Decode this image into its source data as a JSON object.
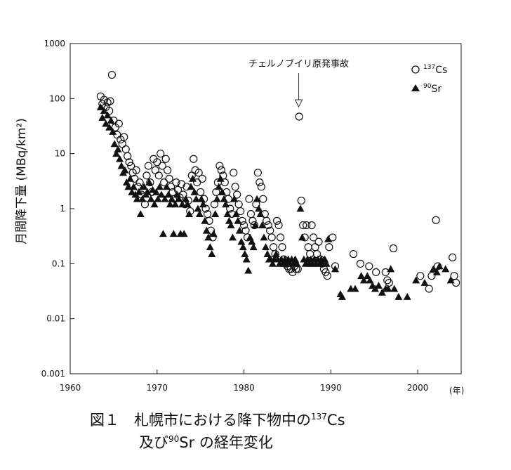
{
  "chart_data": {
    "type": "scatter",
    "ylabel": "月間降下量 (MBq/km²)",
    "xlabel_unit": "(年)",
    "xlim": [
      1960,
      2005
    ],
    "ylim": [
      0.001,
      1000
    ],
    "yscale": "log",
    "x_ticks": [
      "1960",
      "1970",
      "1980",
      "1990",
      "2000"
    ],
    "y_ticks": [
      "1000",
      "100",
      "10",
      "1",
      "0.1",
      "0.01",
      "0.001"
    ],
    "annotation": {
      "text": "チェルノブイリ原発事故",
      "x": 1986.3
    },
    "legend_position": "top-right",
    "series": [
      {
        "name": "137Cs",
        "name_sup": "137",
        "name_base": "Cs",
        "marker": "open-circle",
        "points": [
          [
            1963.5,
            110
          ],
          [
            1963.7,
            80
          ],
          [
            1963.9,
            95
          ],
          [
            1964.1,
            70
          ],
          [
            1964.3,
            85
          ],
          [
            1964.5,
            60
          ],
          [
            1964.6,
            90
          ],
          [
            1964.8,
            270
          ],
          [
            1965.0,
            40
          ],
          [
            1965.2,
            30
          ],
          [
            1965.4,
            22
          ],
          [
            1965.6,
            35
          ],
          [
            1965.8,
            18
          ],
          [
            1966.0,
            15
          ],
          [
            1966.2,
            20
          ],
          [
            1966.4,
            12
          ],
          [
            1966.6,
            9
          ],
          [
            1966.8,
            7
          ],
          [
            1967.0,
            6
          ],
          [
            1967.2,
            4.5
          ],
          [
            1967.4,
            3.5
          ],
          [
            1967.6,
            5
          ],
          [
            1967.8,
            2.5
          ],
          [
            1968.0,
            3
          ],
          [
            1968.2,
            1.8
          ],
          [
            1968.4,
            2.2
          ],
          [
            1968.6,
            1.2
          ],
          [
            1968.8,
            4
          ],
          [
            1969.0,
            6
          ],
          [
            1969.2,
            3
          ],
          [
            1969.4,
            2
          ],
          [
            1969.6,
            8
          ],
          [
            1969.8,
            5
          ],
          [
            1970.0,
            7
          ],
          [
            1970.2,
            4
          ],
          [
            1970.4,
            10
          ],
          [
            1970.6,
            6
          ],
          [
            1970.8,
            3
          ],
          [
            1971.0,
            8
          ],
          [
            1971.2,
            5
          ],
          [
            1971.4,
            3.5
          ],
          [
            1971.6,
            2.5
          ],
          [
            1971.8,
            2
          ],
          [
            1972.0,
            1.5
          ],
          [
            1972.2,
            3
          ],
          [
            1972.4,
            2.2
          ],
          [
            1972.6,
            1.6
          ],
          [
            1972.8,
            2.8
          ],
          [
            1973.0,
            1.8
          ],
          [
            1973.2,
            1.2
          ],
          [
            1973.4,
            2.5
          ],
          [
            1973.6,
            1.4
          ],
          [
            1973.8,
            0.9
          ],
          [
            1974.0,
            4
          ],
          [
            1974.2,
            8
          ],
          [
            1974.4,
            5
          ],
          [
            1974.6,
            3
          ],
          [
            1974.8,
            4.5
          ],
          [
            1975.0,
            2
          ],
          [
            1975.2,
            3.5
          ],
          [
            1975.4,
            1.5
          ],
          [
            1975.6,
            1
          ],
          [
            1975.8,
            0.8
          ],
          [
            1976.0,
            0.6
          ],
          [
            1976.2,
            0.4
          ],
          [
            1976.4,
            0.3
          ],
          [
            1976.6,
            1.2
          ],
          [
            1976.8,
            2
          ],
          [
            1977.0,
            3
          ],
          [
            1977.2,
            6
          ],
          [
            1977.4,
            5
          ],
          [
            1977.6,
            4
          ],
          [
            1977.8,
            3
          ],
          [
            1978.0,
            2
          ],
          [
            1978.2,
            1.5
          ],
          [
            1978.4,
            1
          ],
          [
            1978.6,
            0.8
          ],
          [
            1978.8,
            4.5
          ],
          [
            1979.0,
            2.5
          ],
          [
            1979.2,
            1.8
          ],
          [
            1979.4,
            1.2
          ],
          [
            1979.6,
            0.9
          ],
          [
            1979.8,
            0.6
          ],
          [
            1980.0,
            0.5
          ],
          [
            1980.2,
            0.4
          ],
          [
            1980.4,
            0.3
          ],
          [
            1980.6,
            1.5
          ],
          [
            1980.8,
            0.8
          ],
          [
            1981.0,
            0.6
          ],
          [
            1981.2,
            0.5
          ],
          [
            1981.4,
            1.2
          ],
          [
            1981.6,
            4.5
          ],
          [
            1981.8,
            3
          ],
          [
            1982.0,
            2.5
          ],
          [
            1982.2,
            1.5
          ],
          [
            1982.4,
            0.8
          ],
          [
            1982.6,
            0.6
          ],
          [
            1982.8,
            0.5
          ],
          [
            1983.0,
            0.4
          ],
          [
            1983.2,
            0.3
          ],
          [
            1983.4,
            0.2
          ],
          [
            1983.6,
            0.15
          ],
          [
            1983.8,
            0.6
          ],
          [
            1984.0,
            0.5
          ],
          [
            1984.2,
            0.3
          ],
          [
            1984.4,
            0.2
          ],
          [
            1984.6,
            0.12
          ],
          [
            1984.8,
            0.1
          ],
          [
            1985.0,
            0.09
          ],
          [
            1985.2,
            0.08
          ],
          [
            1985.4,
            0.08
          ],
          [
            1985.6,
            0.07
          ],
          [
            1985.8,
            0.09
          ],
          [
            1986.0,
            0.08
          ],
          [
            1986.2,
            0.08
          ],
          [
            1986.35,
            47
          ],
          [
            1986.6,
            1.4
          ],
          [
            1986.8,
            0.5
          ],
          [
            1987.0,
            0.3
          ],
          [
            1987.2,
            0.5
          ],
          [
            1987.4,
            0.2
          ],
          [
            1987.6,
            0.15
          ],
          [
            1987.8,
            0.5
          ],
          [
            1988.0,
            0.3
          ],
          [
            1988.2,
            0.2
          ],
          [
            1988.4,
            0.15
          ],
          [
            1988.6,
            0.25
          ],
          [
            1988.8,
            0.12
          ],
          [
            1989.0,
            0.1
          ],
          [
            1989.2,
            0.08
          ],
          [
            1989.4,
            0.07
          ],
          [
            1989.6,
            0.06
          ],
          [
            1989.8,
            0.2
          ],
          [
            1990.2,
            0.3
          ],
          [
            1990.5,
            0.09
          ],
          [
            1992.6,
            0.15
          ],
          [
            1993.4,
            0.1
          ],
          [
            1994.4,
            0.09
          ],
          [
            1995.2,
            0.07
          ],
          [
            1996.3,
            0.07
          ],
          [
            1996.5,
            0.05
          ],
          [
            1996.7,
            0.045
          ],
          [
            1997.2,
            0.19
          ],
          [
            2000.3,
            0.06
          ],
          [
            2001.3,
            0.035
          ],
          [
            2001.6,
            0.06
          ],
          [
            2002.1,
            0.62
          ],
          [
            2002.3,
            0.09
          ],
          [
            2004.0,
            0.13
          ],
          [
            2004.2,
            0.06
          ],
          [
            2004.4,
            0.045
          ]
        ]
      },
      {
        "name": "90Sr",
        "name_sup": "90",
        "name_base": "Sr",
        "marker": "filled-triangle",
        "points": [
          [
            1963.5,
            70
          ],
          [
            1963.7,
            45
          ],
          [
            1963.9,
            60
          ],
          [
            1964.1,
            35
          ],
          [
            1964.3,
            50
          ],
          [
            1964.5,
            30
          ],
          [
            1964.7,
            40
          ],
          [
            1964.9,
            25
          ],
          [
            1965.1,
            15
          ],
          [
            1965.3,
            10
          ],
          [
            1965.5,
            12
          ],
          [
            1965.7,
            8
          ],
          [
            1965.9,
            6
          ],
          [
            1966.1,
            4.5
          ],
          [
            1966.3,
            5
          ],
          [
            1966.5,
            3
          ],
          [
            1966.7,
            2.5
          ],
          [
            1966.9,
            3.5
          ],
          [
            1967.1,
            2
          ],
          [
            1967.3,
            2.5
          ],
          [
            1967.5,
            1.8
          ],
          [
            1967.7,
            1.5
          ],
          [
            1967.9,
            2
          ],
          [
            1968.1,
            0.8
          ],
          [
            1968.3,
            1.5
          ],
          [
            1968.5,
            2.5
          ],
          [
            1968.7,
            1.8
          ],
          [
            1968.9,
            2
          ],
          [
            1969.1,
            3
          ],
          [
            1969.3,
            1.5
          ],
          [
            1969.5,
            2.2
          ],
          [
            1969.7,
            1.2
          ],
          [
            1969.9,
            2
          ],
          [
            1970.1,
            1.5
          ],
          [
            1970.3,
            2.5
          ],
          [
            1970.5,
            1.8
          ],
          [
            1970.7,
            0.35
          ],
          [
            1970.9,
            1.5
          ],
          [
            1971.1,
            2.5
          ],
          [
            1971.3,
            1.8
          ],
          [
            1971.5,
            1.2
          ],
          [
            1971.7,
            1.5
          ],
          [
            1971.9,
            0.35
          ],
          [
            1972.1,
            1.2
          ],
          [
            1972.3,
            1.8
          ],
          [
            1972.5,
            1.5
          ],
          [
            1972.7,
            0.35
          ],
          [
            1972.9,
            1.2
          ],
          [
            1973.1,
            0.35
          ],
          [
            1973.3,
            1.5
          ],
          [
            1973.5,
            1.2
          ],
          [
            1973.7,
            0.8
          ],
          [
            1973.9,
            2.5
          ],
          [
            1974.1,
            3.5
          ],
          [
            1974.3,
            2
          ],
          [
            1974.5,
            1.5
          ],
          [
            1974.7,
            1
          ],
          [
            1974.9,
            0.8
          ],
          [
            1975.1,
            1.5
          ],
          [
            1975.3,
            1.2
          ],
          [
            1975.5,
            0.6
          ],
          [
            1975.7,
            0.4
          ],
          [
            1975.9,
            0.3
          ],
          [
            1976.1,
            0.2
          ],
          [
            1976.3,
            0.15
          ],
          [
            1976.5,
            0.35
          ],
          [
            1976.7,
            0.8
          ],
          [
            1976.9,
            1.5
          ],
          [
            1977.1,
            2.5
          ],
          [
            1977.3,
            3.5
          ],
          [
            1977.5,
            2
          ],
          [
            1977.7,
            1.5
          ],
          [
            1977.9,
            1.2
          ],
          [
            1978.1,
            0.8
          ],
          [
            1978.3,
            0.6
          ],
          [
            1978.5,
            0.5
          ],
          [
            1978.7,
            0.3
          ],
          [
            1978.9,
            1.5
          ],
          [
            1979.1,
            0.8
          ],
          [
            1979.3,
            0.6
          ],
          [
            1979.5,
            0.4
          ],
          [
            1979.7,
            0.25
          ],
          [
            1979.9,
            0.2
          ],
          [
            1980.1,
            0.15
          ],
          [
            1980.3,
            0.12
          ],
          [
            1980.5,
            0.075
          ],
          [
            1980.7,
            0.3
          ],
          [
            1980.9,
            0.25
          ],
          [
            1981.1,
            0.2
          ],
          [
            1981.3,
            0.5
          ],
          [
            1981.5,
            1.5
          ],
          [
            1981.7,
            1
          ],
          [
            1981.9,
            0.8
          ],
          [
            1982.1,
            0.5
          ],
          [
            1982.3,
            0.3
          ],
          [
            1982.5,
            0.2
          ],
          [
            1982.7,
            0.15
          ],
          [
            1982.9,
            0.12
          ],
          [
            1983.1,
            0.12
          ],
          [
            1983.3,
            0.1
          ],
          [
            1983.5,
            0.12
          ],
          [
            1983.7,
            0.15
          ],
          [
            1983.9,
            0.12
          ],
          [
            1984.1,
            0.1
          ],
          [
            1984.3,
            0.12
          ],
          [
            1984.5,
            0.1
          ],
          [
            1984.7,
            0.12
          ],
          [
            1984.9,
            0.1
          ],
          [
            1985.1,
            0.12
          ],
          [
            1985.3,
            0.1
          ],
          [
            1985.5,
            0.12
          ],
          [
            1985.7,
            0.1
          ],
          [
            1985.9,
            0.12
          ],
          [
            1986.1,
            0.1
          ],
          [
            1986.5,
            1
          ],
          [
            1986.7,
            0.3
          ],
          [
            1986.9,
            0.12
          ],
          [
            1987.1,
            0.1
          ],
          [
            1987.3,
            0.12
          ],
          [
            1987.5,
            0.1
          ],
          [
            1987.7,
            0.12
          ],
          [
            1987.9,
            0.1
          ],
          [
            1988.1,
            0.12
          ],
          [
            1988.3,
            0.1
          ],
          [
            1988.5,
            0.12
          ],
          [
            1988.7,
            0.1
          ],
          [
            1988.9,
            0.12
          ],
          [
            1989.1,
            0.1
          ],
          [
            1989.3,
            0.12
          ],
          [
            1989.5,
            0.1
          ],
          [
            1989.7,
            0.28
          ],
          [
            1990.5,
            0.08
          ],
          [
            1991.1,
            0.028
          ],
          [
            1991.3,
            0.025
          ],
          [
            1992.3,
            0.035
          ],
          [
            1992.8,
            0.035
          ],
          [
            1993.5,
            0.06
          ],
          [
            1993.8,
            0.05
          ],
          [
            1994.2,
            0.06
          ],
          [
            1994.5,
            0.05
          ],
          [
            1994.8,
            0.04
          ],
          [
            1995.1,
            0.035
          ],
          [
            1995.5,
            0.04
          ],
          [
            1995.9,
            0.03
          ],
          [
            1996.3,
            0.035
          ],
          [
            1996.6,
            0.035
          ],
          [
            1996.9,
            0.08
          ],
          [
            1997.3,
            0.035
          ],
          [
            1997.8,
            0.025
          ],
          [
            1998.8,
            0.025
          ],
          [
            1999.8,
            0.05
          ],
          [
            2000.8,
            0.045
          ],
          [
            2001.8,
            0.08
          ],
          [
            2002.2,
            0.07
          ],
          [
            2002.5,
            0.09
          ],
          [
            2003.2,
            0.08
          ],
          [
            2003.8,
            0.05
          ]
        ]
      }
    ]
  },
  "caption": {
    "line1_prefix": "図１　札幌市における降下物中の",
    "line1_sup": "137",
    "line1_suffix": "Cs",
    "line2_prefix": "及び",
    "line2_sup": "90",
    "line2_suffix": "Sr の経年変化"
  }
}
